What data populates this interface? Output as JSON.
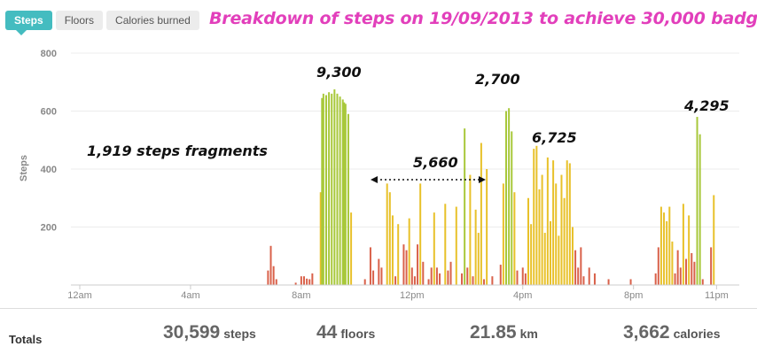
{
  "tabs": [
    {
      "label": "Steps",
      "active": true
    },
    {
      "label": "Floors",
      "active": false
    },
    {
      "label": "Calories burned",
      "active": false
    }
  ],
  "annotation_title": "Breakdown of steps on 19/09/2013 to achieve 30,000 badge",
  "annotations": {
    "fragments": "1,919 steps fragments",
    "peak_morning": "9,300",
    "midday_range": "5,660",
    "afternoon_peak": "2,700",
    "late_afternoon": "6,725",
    "evening": "4,295"
  },
  "colors": {
    "active_tab": "#44bcc0",
    "annotation": "#e23fbb",
    "bar_low": "#d9614a",
    "bar_mid": "#e8c12a",
    "bar_high": "#a8c83a"
  },
  "chart_data": {
    "type": "bar",
    "ylabel": "Steps",
    "ylim": [
      0,
      800
    ],
    "yticks": [
      "200",
      "400",
      "600",
      "800"
    ],
    "xticks": [
      "12am",
      "4am",
      "8am",
      "12pm",
      "4pm",
      "8pm",
      "11pm"
    ],
    "xlim_hours": [
      0,
      23.5
    ],
    "grid": true,
    "bars": [
      [
        6.8,
        50
      ],
      [
        6.9,
        135
      ],
      [
        7.0,
        65
      ],
      [
        7.1,
        20
      ],
      [
        7.8,
        8
      ],
      [
        8.0,
        30
      ],
      [
        8.1,
        30
      ],
      [
        8.2,
        22
      ],
      [
        8.3,
        20
      ],
      [
        8.4,
        40
      ],
      [
        8.7,
        320
      ],
      [
        8.75,
        645
      ],
      [
        8.8,
        660
      ],
      [
        8.9,
        655
      ],
      [
        9.0,
        665
      ],
      [
        9.1,
        660
      ],
      [
        9.2,
        675
      ],
      [
        9.3,
        660
      ],
      [
        9.4,
        650
      ],
      [
        9.5,
        640
      ],
      [
        9.55,
        630
      ],
      [
        9.6,
        625
      ],
      [
        9.7,
        590
      ],
      [
        9.8,
        250
      ],
      [
        10.3,
        20
      ],
      [
        10.5,
        130
      ],
      [
        10.6,
        50
      ],
      [
        10.8,
        90
      ],
      [
        10.9,
        60
      ],
      [
        11.1,
        350
      ],
      [
        11.2,
        320
      ],
      [
        11.3,
        240
      ],
      [
        11.4,
        30
      ],
      [
        11.5,
        210
      ],
      [
        11.7,
        140
      ],
      [
        11.8,
        120
      ],
      [
        11.9,
        230
      ],
      [
        12.0,
        60
      ],
      [
        12.1,
        30
      ],
      [
        12.2,
        140
      ],
      [
        12.3,
        350
      ],
      [
        12.4,
        80
      ],
      [
        12.6,
        20
      ],
      [
        12.7,
        60
      ],
      [
        12.8,
        250
      ],
      [
        12.9,
        60
      ],
      [
        13.0,
        40
      ],
      [
        13.2,
        280
      ],
      [
        13.3,
        50
      ],
      [
        13.4,
        80
      ],
      [
        13.6,
        270
      ],
      [
        13.8,
        40
      ],
      [
        13.9,
        540
      ],
      [
        14.0,
        60
      ],
      [
        14.1,
        380
      ],
      [
        14.2,
        30
      ],
      [
        14.3,
        260
      ],
      [
        14.4,
        180
      ],
      [
        14.5,
        490
      ],
      [
        14.6,
        20
      ],
      [
        14.7,
        400
      ],
      [
        14.9,
        30
      ],
      [
        15.2,
        70
      ],
      [
        15.3,
        350
      ],
      [
        15.4,
        600
      ],
      [
        15.5,
        610
      ],
      [
        15.6,
        530
      ],
      [
        15.7,
        320
      ],
      [
        15.8,
        50
      ],
      [
        16.0,
        60
      ],
      [
        16.1,
        40
      ],
      [
        16.2,
        300
      ],
      [
        16.3,
        210
      ],
      [
        16.4,
        470
      ],
      [
        16.5,
        480
      ],
      [
        16.6,
        330
      ],
      [
        16.7,
        380
      ],
      [
        16.8,
        180
      ],
      [
        16.9,
        440
      ],
      [
        17.0,
        220
      ],
      [
        17.1,
        430
      ],
      [
        17.2,
        350
      ],
      [
        17.3,
        170
      ],
      [
        17.4,
        380
      ],
      [
        17.5,
        300
      ],
      [
        17.6,
        430
      ],
      [
        17.7,
        420
      ],
      [
        17.8,
        200
      ],
      [
        17.9,
        120
      ],
      [
        18.0,
        60
      ],
      [
        18.1,
        130
      ],
      [
        18.2,
        30
      ],
      [
        18.4,
        60
      ],
      [
        18.6,
        40
      ],
      [
        19.1,
        20
      ],
      [
        19.9,
        20
      ],
      [
        20.8,
        40
      ],
      [
        20.9,
        130
      ],
      [
        21.0,
        270
      ],
      [
        21.1,
        250
      ],
      [
        21.2,
        220
      ],
      [
        21.3,
        270
      ],
      [
        21.4,
        150
      ],
      [
        21.5,
        40
      ],
      [
        21.6,
        120
      ],
      [
        21.7,
        60
      ],
      [
        21.8,
        280
      ],
      [
        21.9,
        90
      ],
      [
        22.0,
        240
      ],
      [
        22.1,
        110
      ],
      [
        22.2,
        80
      ],
      [
        22.3,
        580
      ],
      [
        22.4,
        520
      ],
      [
        22.5,
        20
      ],
      [
        22.8,
        130
      ],
      [
        22.9,
        310
      ]
    ]
  },
  "totals": {
    "label": "Totals",
    "steps": {
      "value": "30,599",
      "unit": "steps"
    },
    "floors": {
      "value": "44",
      "unit": "floors"
    },
    "distance": {
      "value": "21.85",
      "unit": "km"
    },
    "calories": {
      "value": "3,662",
      "unit": "calories"
    }
  }
}
